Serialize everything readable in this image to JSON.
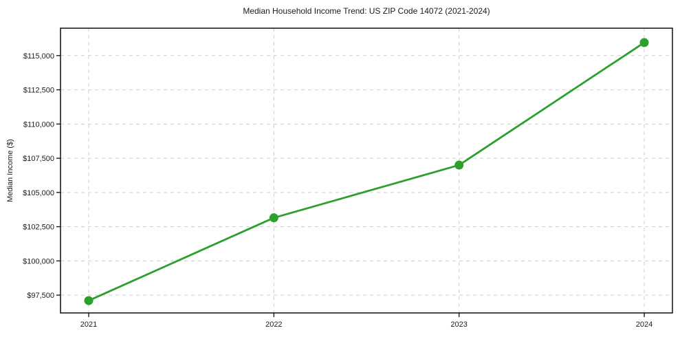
{
  "figure": {
    "title": "Median Household Income Trend: US ZIP Code 14072 (2021-2024)"
  },
  "chart_data": {
    "type": "line",
    "title": "Median Household Income Trend: US ZIP Code 14072 (2021-2024)",
    "xlabel": "",
    "ylabel": "Median Income ($)",
    "x": [
      2021,
      2022,
      2023,
      2024
    ],
    "x_tick_labels": [
      "2021",
      "2022",
      "2023",
      "2024"
    ],
    "series": [
      {
        "name": "Median Household Income",
        "values": [
          97100,
          103150,
          107000,
          115950
        ],
        "color": "#2ca02c",
        "marker": "circle"
      }
    ],
    "y_ticks": [
      97500,
      100000,
      102500,
      105000,
      107500,
      110000,
      112500,
      115000
    ],
    "y_tick_labels": [
      "$97,500",
      "$100,000",
      "$102,500",
      "$105,000",
      "$107,500",
      "$110,000",
      "$112,500",
      "$115,000"
    ],
    "ylim": [
      96200,
      117000
    ],
    "grid": true,
    "grid_style": "dashed",
    "grid_color": "#cdcdcd",
    "axis_color": "#1a1a1a",
    "legend_position": "none"
  }
}
